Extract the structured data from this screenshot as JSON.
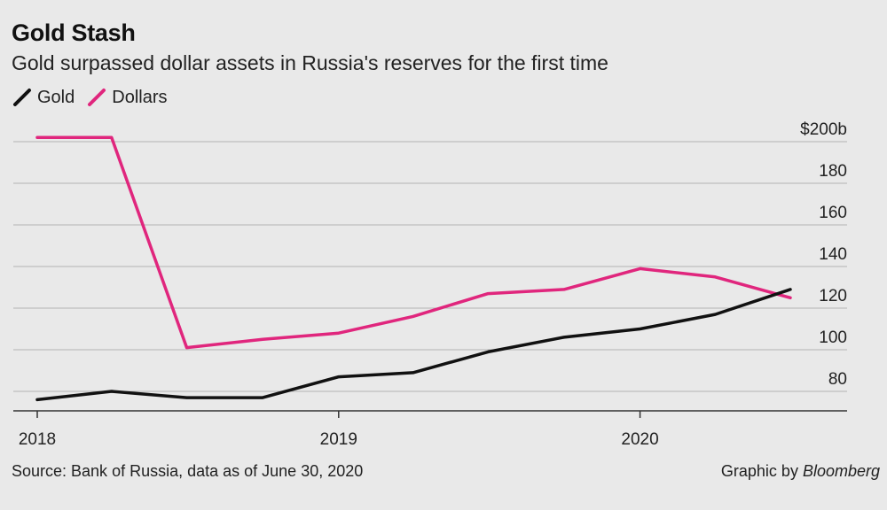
{
  "header": {
    "title": "Gold Stash",
    "subtitle": "Gold surpassed dollar assets in Russia's reserves for the first time"
  },
  "footer": {
    "source": "Source: Bank of Russia, data as of June 30, 2020",
    "credit_prefix": "Graphic by ",
    "credit_brand": "Bloomberg"
  },
  "colors": {
    "gold": "#111111",
    "dollars": "#e0267d",
    "grid": "#b3b3b3",
    "background": "#e9e9e9"
  },
  "chart_data": {
    "type": "line",
    "title": "Gold Stash",
    "subtitle": "Gold surpassed dollar assets in Russia's reserves for the first time",
    "x": [
      "2018-01-01",
      "2018-04-01",
      "2018-07-01",
      "2018-10-01",
      "2019-01-01",
      "2019-04-01",
      "2019-07-01",
      "2019-10-01",
      "2020-01-01",
      "2020-04-01",
      "2020-07-01"
    ],
    "x_tick_labels": [
      "2018",
      "2019",
      "2020"
    ],
    "series": [
      {
        "name": "Gold",
        "color": "#111111",
        "values": [
          76,
          80,
          77,
          77,
          87,
          89,
          99,
          106,
          110,
          117,
          129
        ]
      },
      {
        "name": "Dollars",
        "color": "#e0267d",
        "values": [
          202,
          202,
          101,
          105,
          108,
          116,
          127,
          129,
          139,
          135,
          125
        ]
      }
    ],
    "y_ticks": [
      80,
      100,
      120,
      140,
      160,
      180,
      200
    ],
    "y_tick_labels": [
      "80",
      "100",
      "120",
      "140",
      "160",
      "180",
      "$200b"
    ],
    "ylim": [
      70,
      200
    ],
    "y_axis_position": "right",
    "grid": true,
    "legend_position": "top-left",
    "xlabel": "",
    "ylabel": ""
  }
}
